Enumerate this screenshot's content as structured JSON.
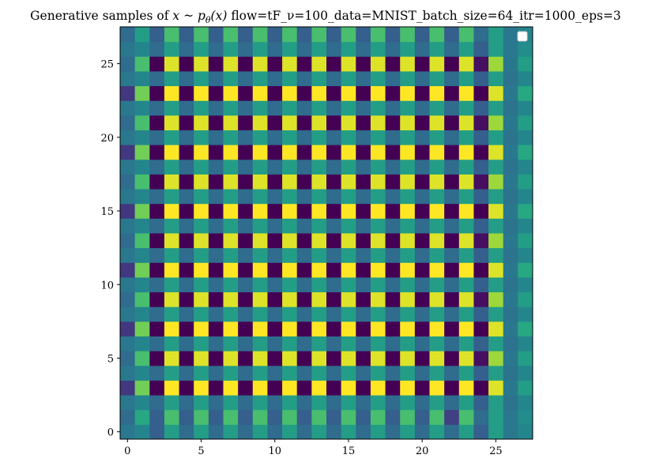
{
  "chart_data": {
    "type": "heatmap",
    "title_prefix": "Generative samples of  ",
    "title_math": "x ~ p",
    "title_math_sub": "θ",
    "title_math_arg": "(x)",
    "title_suffix": " flow=tF_ν=100_data=MNIST_batch_size=64_itr=1000_eps=3",
    "xlabel": "",
    "ylabel": "",
    "xlim": [
      -0.5,
      27.5
    ],
    "ylim": [
      27.5,
      -0.5
    ],
    "x_ticks": [
      0,
      5,
      10,
      15,
      20,
      25
    ],
    "y_ticks": [
      0,
      5,
      10,
      15,
      20,
      25
    ],
    "colormap": "viridis",
    "grid": false,
    "legend": "top-right, empty",
    "pattern_note_rows": "row r, col c; checkerboard structure with bands",
    "matrix": [
      [
        0.4,
        0.45,
        0.3,
        0.55,
        0.35,
        0.55,
        0.35,
        0.55,
        0.35,
        0.55,
        0.35,
        0.55,
        0.35,
        0.55,
        0.35,
        0.55,
        0.35,
        0.55,
        0.35,
        0.55,
        0.35,
        0.55,
        0.35,
        0.55,
        0.3,
        0.55,
        0.4,
        0.45
      ],
      [
        0.35,
        0.6,
        0.3,
        0.7,
        0.3,
        0.7,
        0.3,
        0.7,
        0.3,
        0.7,
        0.3,
        0.7,
        0.3,
        0.7,
        0.3,
        0.7,
        0.3,
        0.7,
        0.3,
        0.7,
        0.3,
        0.7,
        0.2,
        0.7,
        0.35,
        0.55,
        0.4,
        0.48
      ],
      [
        0.4,
        0.45,
        0.35,
        0.55,
        0.35,
        0.55,
        0.35,
        0.55,
        0.35,
        0.55,
        0.35,
        0.55,
        0.35,
        0.55,
        0.35,
        0.55,
        0.35,
        0.55,
        0.35,
        0.55,
        0.35,
        0.55,
        0.35,
        0.55,
        0.3,
        0.55,
        0.38,
        0.45
      ],
      [
        0.18,
        0.78,
        0.0,
        1.0,
        0.0,
        1.0,
        0.0,
        1.0,
        0.0,
        1.0,
        0.0,
        1.0,
        0.0,
        1.0,
        0.0,
        1.0,
        0.0,
        1.0,
        0.0,
        1.0,
        0.0,
        1.0,
        0.0,
        1.0,
        0.0,
        0.95,
        0.4,
        0.55
      ],
      [
        0.4,
        0.45,
        0.35,
        0.55,
        0.35,
        0.55,
        0.35,
        0.55,
        0.35,
        0.55,
        0.35,
        0.55,
        0.35,
        0.55,
        0.35,
        0.55,
        0.35,
        0.55,
        0.35,
        0.55,
        0.35,
        0.55,
        0.35,
        0.55,
        0.3,
        0.55,
        0.38,
        0.45
      ],
      [
        0.35,
        0.7,
        0.0,
        0.95,
        0.0,
        0.95,
        0.0,
        0.95,
        0.0,
        0.95,
        0.0,
        0.95,
        0.0,
        0.95,
        0.0,
        0.95,
        0.0,
        0.95,
        0.0,
        0.95,
        0.0,
        0.95,
        0.0,
        0.95,
        0.05,
        0.85,
        0.4,
        0.55
      ],
      [
        0.4,
        0.45,
        0.35,
        0.55,
        0.35,
        0.55,
        0.35,
        0.55,
        0.35,
        0.55,
        0.35,
        0.55,
        0.35,
        0.55,
        0.35,
        0.55,
        0.35,
        0.55,
        0.35,
        0.55,
        0.35,
        0.55,
        0.35,
        0.55,
        0.3,
        0.55,
        0.38,
        0.45
      ],
      [
        0.18,
        0.78,
        0.0,
        1.0,
        0.0,
        1.0,
        0.0,
        1.0,
        0.0,
        1.0,
        0.0,
        1.0,
        0.0,
        1.0,
        0.0,
        1.0,
        0.0,
        1.0,
        0.0,
        1.0,
        0.0,
        1.0,
        0.0,
        1.0,
        0.0,
        0.95,
        0.4,
        0.6
      ],
      [
        0.4,
        0.45,
        0.35,
        0.55,
        0.35,
        0.55,
        0.35,
        0.55,
        0.35,
        0.55,
        0.35,
        0.55,
        0.35,
        0.55,
        0.35,
        0.55,
        0.35,
        0.55,
        0.35,
        0.55,
        0.35,
        0.55,
        0.35,
        0.55,
        0.3,
        0.55,
        0.38,
        0.45
      ],
      [
        0.35,
        0.7,
        0.0,
        0.95,
        0.0,
        0.95,
        0.0,
        0.95,
        0.0,
        0.95,
        0.0,
        0.95,
        0.0,
        0.95,
        0.0,
        0.95,
        0.0,
        0.95,
        0.0,
        0.95,
        0.0,
        0.95,
        0.0,
        0.95,
        0.05,
        0.85,
        0.4,
        0.55
      ],
      [
        0.4,
        0.45,
        0.35,
        0.55,
        0.35,
        0.55,
        0.35,
        0.55,
        0.35,
        0.55,
        0.35,
        0.55,
        0.35,
        0.55,
        0.35,
        0.55,
        0.35,
        0.55,
        0.35,
        0.55,
        0.35,
        0.55,
        0.35,
        0.55,
        0.3,
        0.55,
        0.38,
        0.45
      ],
      [
        0.18,
        0.78,
        0.0,
        1.0,
        0.0,
        1.0,
        0.0,
        1.0,
        0.0,
        1.0,
        0.0,
        1.0,
        0.0,
        1.0,
        0.0,
        1.0,
        0.0,
        1.0,
        0.0,
        1.0,
        0.0,
        1.0,
        0.0,
        1.0,
        0.0,
        0.95,
        0.4,
        0.6
      ],
      [
        0.4,
        0.45,
        0.35,
        0.55,
        0.35,
        0.55,
        0.35,
        0.55,
        0.35,
        0.55,
        0.35,
        0.55,
        0.35,
        0.55,
        0.35,
        0.55,
        0.35,
        0.55,
        0.35,
        0.55,
        0.35,
        0.55,
        0.35,
        0.55,
        0.3,
        0.55,
        0.38,
        0.45
      ],
      [
        0.35,
        0.7,
        0.0,
        0.95,
        0.0,
        0.95,
        0.0,
        0.95,
        0.0,
        0.95,
        0.0,
        0.95,
        0.0,
        0.95,
        0.0,
        0.95,
        0.0,
        0.95,
        0.0,
        0.95,
        0.0,
        0.95,
        0.0,
        0.95,
        0.05,
        0.85,
        0.4,
        0.55
      ],
      [
        0.4,
        0.45,
        0.35,
        0.55,
        0.35,
        0.55,
        0.35,
        0.55,
        0.35,
        0.55,
        0.35,
        0.55,
        0.35,
        0.55,
        0.35,
        0.55,
        0.35,
        0.55,
        0.35,
        0.55,
        0.35,
        0.55,
        0.35,
        0.55,
        0.3,
        0.55,
        0.38,
        0.45
      ],
      [
        0.18,
        0.78,
        0.0,
        1.0,
        0.0,
        1.0,
        0.0,
        1.0,
        0.0,
        1.0,
        0.0,
        1.0,
        0.0,
        1.0,
        0.0,
        1.0,
        0.0,
        1.0,
        0.0,
        1.0,
        0.0,
        1.0,
        0.0,
        1.0,
        0.0,
        0.95,
        0.4,
        0.6
      ],
      [
        0.4,
        0.45,
        0.35,
        0.55,
        0.35,
        0.55,
        0.35,
        0.55,
        0.35,
        0.55,
        0.35,
        0.55,
        0.35,
        0.55,
        0.35,
        0.55,
        0.35,
        0.55,
        0.35,
        0.55,
        0.35,
        0.55,
        0.35,
        0.55,
        0.3,
        0.55,
        0.38,
        0.45
      ],
      [
        0.35,
        0.7,
        0.0,
        0.95,
        0.0,
        0.95,
        0.0,
        0.95,
        0.0,
        0.95,
        0.0,
        0.95,
        0.0,
        0.95,
        0.0,
        0.95,
        0.0,
        0.95,
        0.0,
        0.95,
        0.0,
        0.95,
        0.0,
        0.95,
        0.05,
        0.85,
        0.4,
        0.55
      ],
      [
        0.4,
        0.45,
        0.35,
        0.55,
        0.35,
        0.55,
        0.35,
        0.55,
        0.35,
        0.55,
        0.35,
        0.55,
        0.35,
        0.55,
        0.35,
        0.55,
        0.35,
        0.55,
        0.35,
        0.55,
        0.35,
        0.55,
        0.35,
        0.55,
        0.3,
        0.55,
        0.38,
        0.45
      ],
      [
        0.18,
        0.78,
        0.0,
        1.0,
        0.0,
        1.0,
        0.0,
        1.0,
        0.0,
        1.0,
        0.0,
        1.0,
        0.0,
        1.0,
        0.0,
        1.0,
        0.0,
        1.0,
        0.0,
        1.0,
        0.0,
        1.0,
        0.0,
        1.0,
        0.0,
        0.95,
        0.4,
        0.6
      ],
      [
        0.4,
        0.45,
        0.35,
        0.55,
        0.35,
        0.55,
        0.35,
        0.55,
        0.35,
        0.55,
        0.35,
        0.55,
        0.35,
        0.55,
        0.35,
        0.55,
        0.35,
        0.55,
        0.35,
        0.55,
        0.35,
        0.55,
        0.35,
        0.55,
        0.3,
        0.55,
        0.38,
        0.45
      ],
      [
        0.35,
        0.7,
        0.0,
        0.95,
        0.0,
        0.95,
        0.0,
        0.95,
        0.0,
        0.95,
        0.0,
        0.95,
        0.0,
        0.95,
        0.0,
        0.95,
        0.0,
        0.95,
        0.0,
        0.95,
        0.0,
        0.95,
        0.0,
        0.95,
        0.05,
        0.85,
        0.4,
        0.55
      ],
      [
        0.4,
        0.45,
        0.35,
        0.55,
        0.35,
        0.55,
        0.35,
        0.55,
        0.35,
        0.55,
        0.35,
        0.55,
        0.35,
        0.55,
        0.35,
        0.55,
        0.35,
        0.55,
        0.35,
        0.55,
        0.35,
        0.55,
        0.35,
        0.55,
        0.3,
        0.55,
        0.38,
        0.45
      ],
      [
        0.18,
        0.78,
        0.0,
        1.0,
        0.0,
        1.0,
        0.0,
        1.0,
        0.0,
        1.0,
        0.0,
        1.0,
        0.0,
        1.0,
        0.0,
        1.0,
        0.0,
        1.0,
        0.0,
        1.0,
        0.0,
        1.0,
        0.0,
        1.0,
        0.0,
        0.95,
        0.4,
        0.6
      ],
      [
        0.4,
        0.45,
        0.35,
        0.55,
        0.35,
        0.55,
        0.35,
        0.55,
        0.35,
        0.55,
        0.35,
        0.55,
        0.35,
        0.55,
        0.35,
        0.55,
        0.35,
        0.55,
        0.35,
        0.55,
        0.35,
        0.55,
        0.35,
        0.55,
        0.3,
        0.55,
        0.38,
        0.45
      ],
      [
        0.35,
        0.7,
        0.0,
        0.95,
        0.0,
        0.95,
        0.0,
        0.95,
        0.0,
        0.95,
        0.0,
        0.95,
        0.0,
        0.95,
        0.0,
        0.95,
        0.0,
        0.95,
        0.0,
        0.95,
        0.0,
        0.95,
        0.0,
        0.95,
        0.05,
        0.85,
        0.4,
        0.55
      ],
      [
        0.4,
        0.45,
        0.35,
        0.55,
        0.35,
        0.55,
        0.35,
        0.55,
        0.35,
        0.55,
        0.35,
        0.55,
        0.35,
        0.55,
        0.35,
        0.55,
        0.35,
        0.55,
        0.35,
        0.55,
        0.35,
        0.55,
        0.35,
        0.55,
        0.3,
        0.55,
        0.4,
        0.48
      ],
      [
        0.35,
        0.55,
        0.3,
        0.7,
        0.3,
        0.7,
        0.3,
        0.7,
        0.3,
        0.7,
        0.3,
        0.7,
        0.3,
        0.7,
        0.3,
        0.7,
        0.3,
        0.7,
        0.3,
        0.7,
        0.3,
        0.7,
        0.3,
        0.7,
        0.35,
        0.55,
        0.4,
        0.45
      ]
    ]
  }
}
